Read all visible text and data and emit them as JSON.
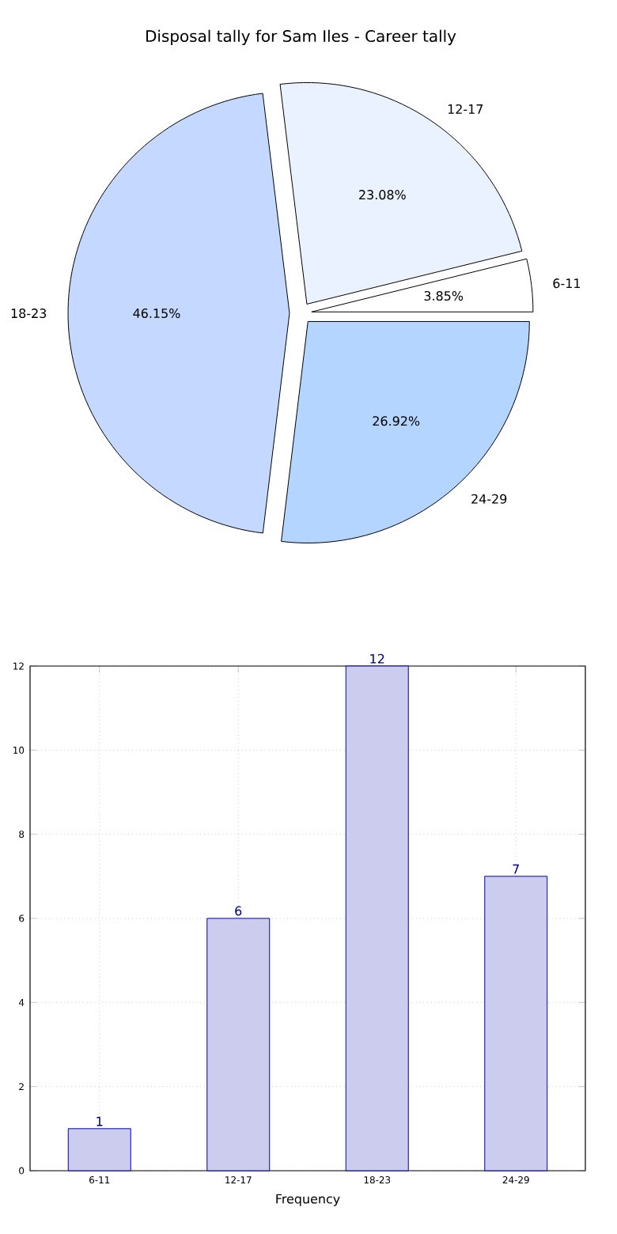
{
  "chart_data": [
    {
      "type": "pie",
      "title": "Disposal tally for Sam Iles - Career tally",
      "categories": [
        "6-11",
        "12-17",
        "18-23",
        "24-29"
      ],
      "values": [
        3.85,
        23.08,
        46.15,
        26.92
      ],
      "value_labels": [
        "3.85%",
        "23.08%",
        "46.15%",
        "26.92%"
      ],
      "colors": [
        "#ffffff",
        "#eaf1ff",
        "#c5d8ff",
        "#b3d5ff"
      ]
    },
    {
      "type": "bar",
      "xlabel": "Frequency",
      "categories": [
        "6-11",
        "12-17",
        "18-23",
        "24-29"
      ],
      "values": [
        1,
        6,
        12,
        7
      ],
      "color": "#ccccee",
      "data_labels": true,
      "grid": true,
      "ylim": [
        0,
        12
      ],
      "yticks": [
        0,
        2,
        4,
        6,
        8,
        10,
        12
      ]
    }
  ]
}
